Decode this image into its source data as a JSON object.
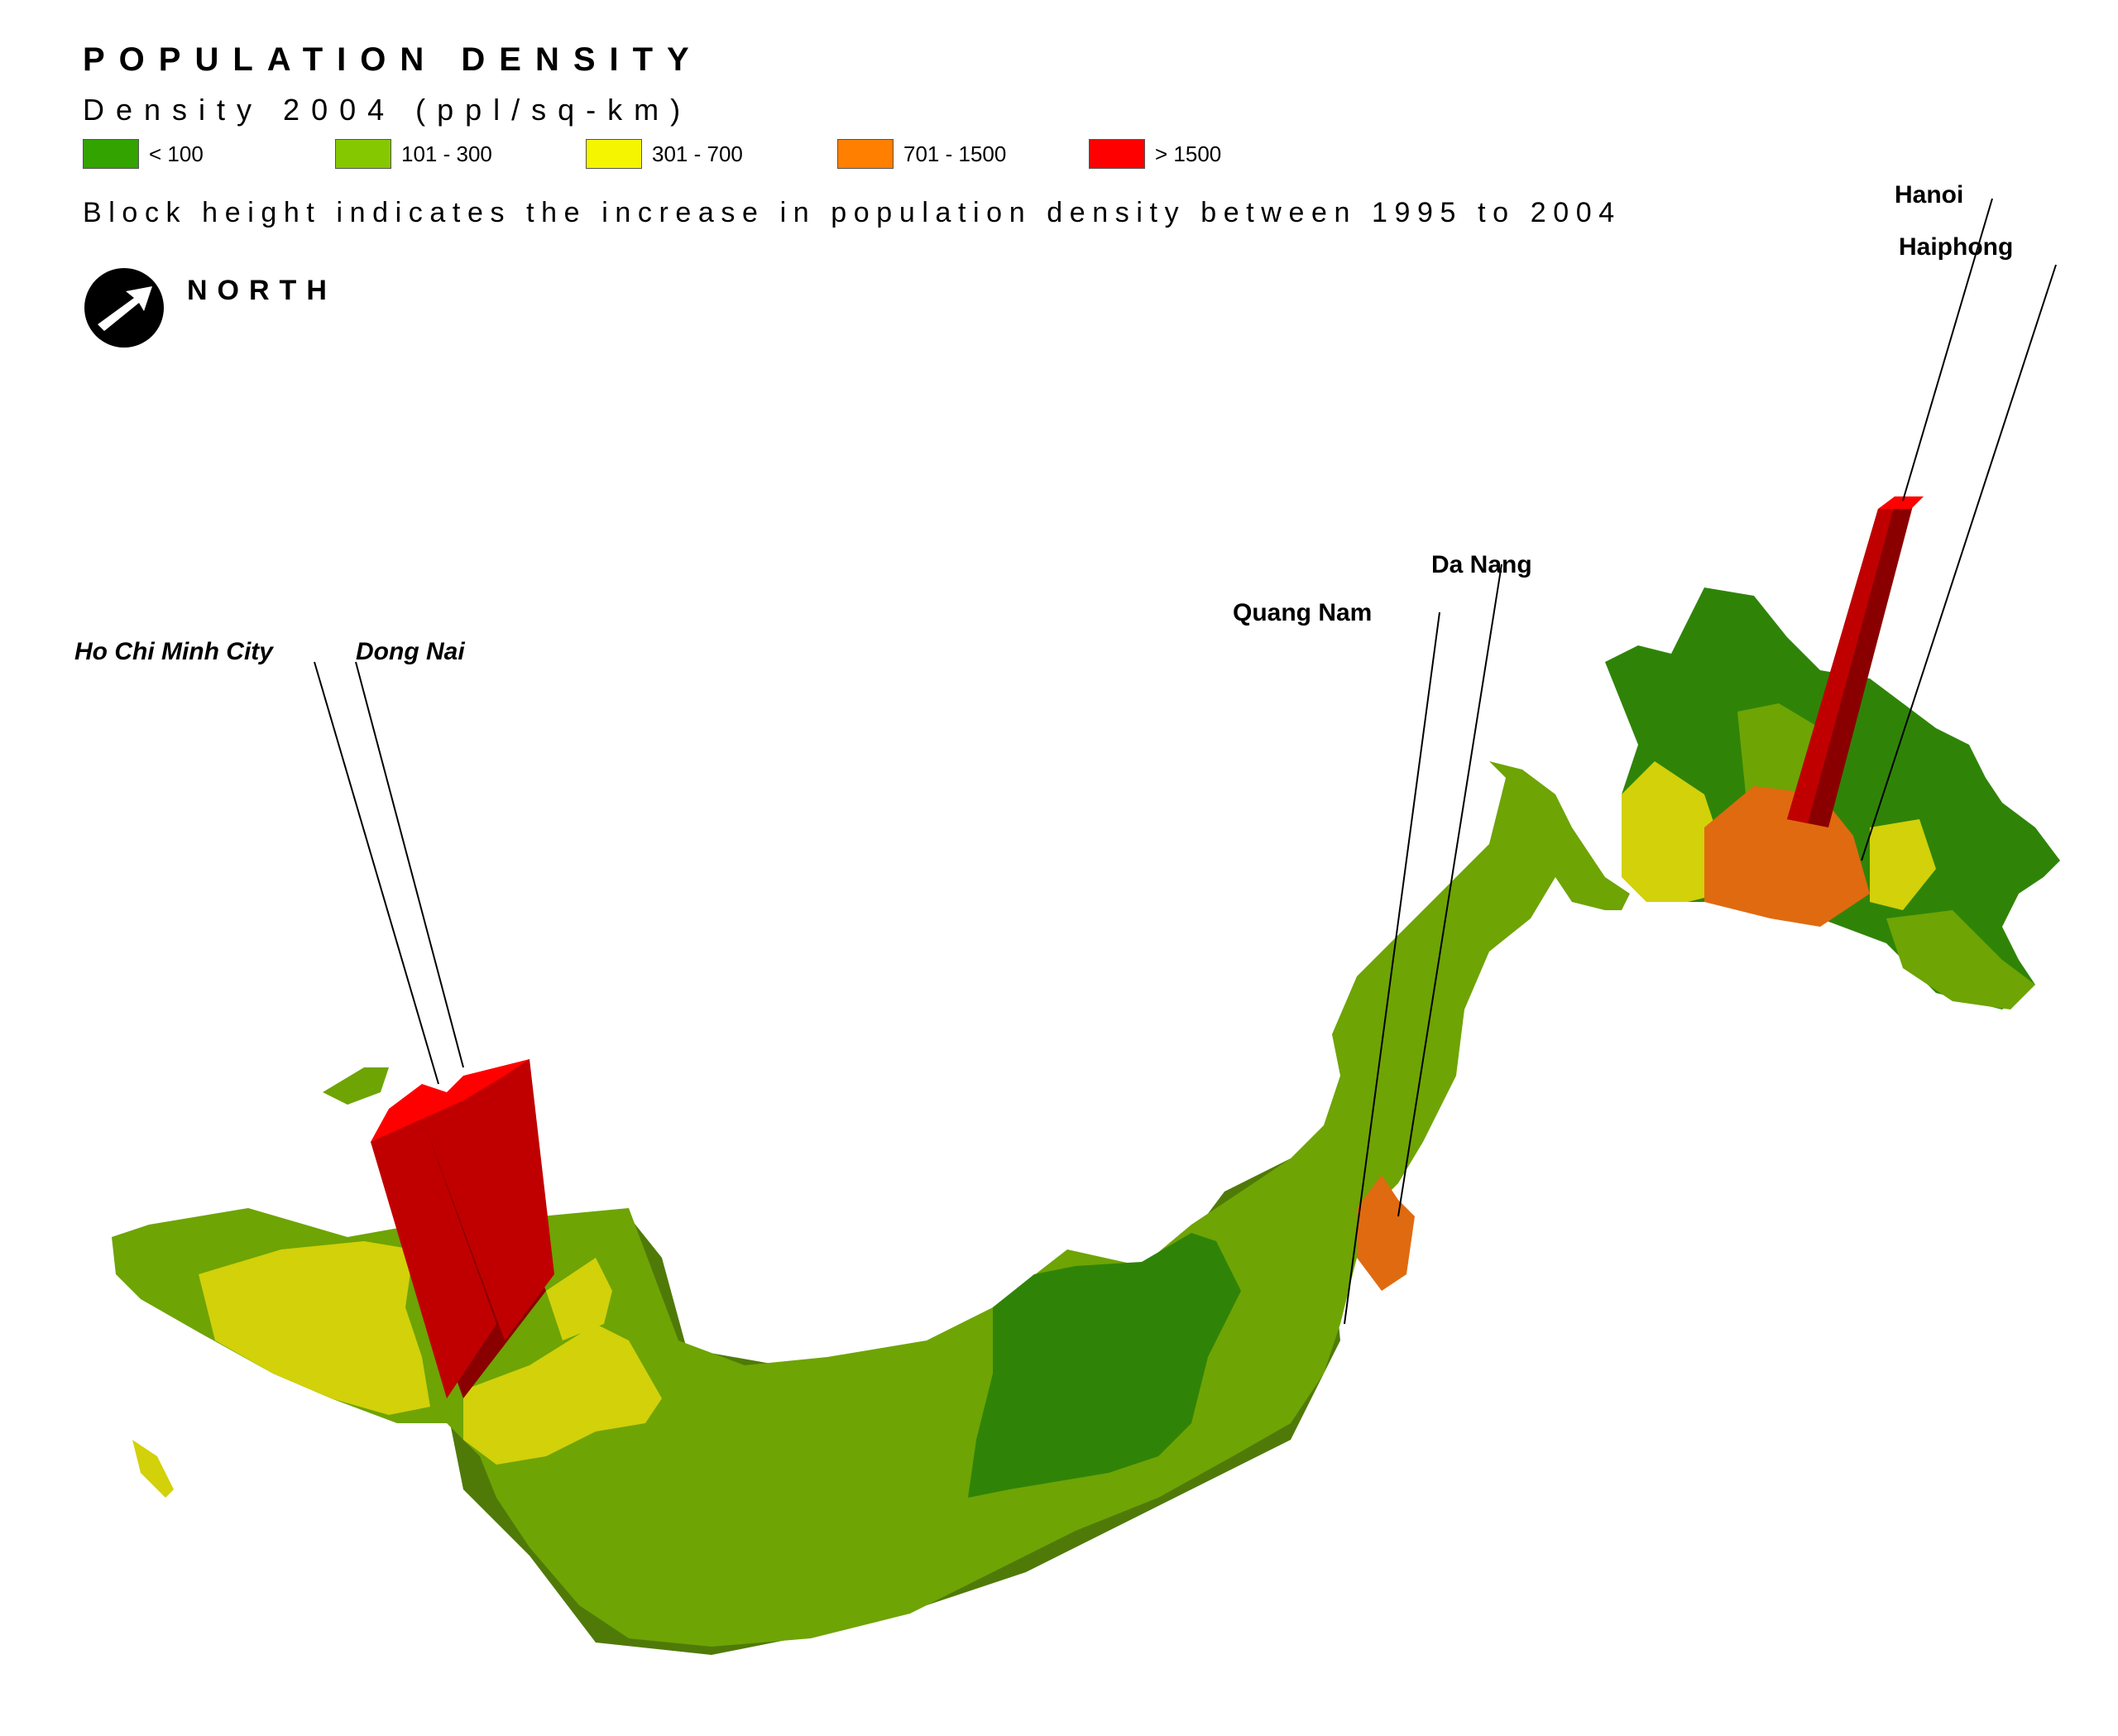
{
  "title": "POPULATION DENSITY",
  "subtitle": "Density 2004 (ppl/sq-km)",
  "legend": [
    {
      "label": "< 100",
      "color": "#33a300"
    },
    {
      "label": "101 - 300",
      "color": "#86c800"
    },
    {
      "label": "301 - 700",
      "color": "#f5f500"
    },
    {
      "label": "701 - 1500",
      "color": "#ff7f00"
    },
    {
      "label": "> 1500",
      "color": "#ff0000"
    }
  ],
  "note": "Block height indicates the increase in population density between 1995 to 2004",
  "north_label": "NORTH",
  "north_icon": "north-arrow-icon",
  "places": {
    "hanoi": "Hanoi",
    "haiphong": "Haiphong",
    "da_nang": "Da Nang",
    "quang_nam": "Quang Nam",
    "ho_chi_minh_city": "Ho Chi Minh City",
    "dong_nai": "Dong Nai"
  },
  "map_colors": {
    "dark_green": "#2f8408",
    "mid_green": "#6ea404",
    "yellow": "#d2d10a",
    "orange": "#e06a10",
    "red": "#c00000",
    "red_dark": "#8a0000"
  }
}
